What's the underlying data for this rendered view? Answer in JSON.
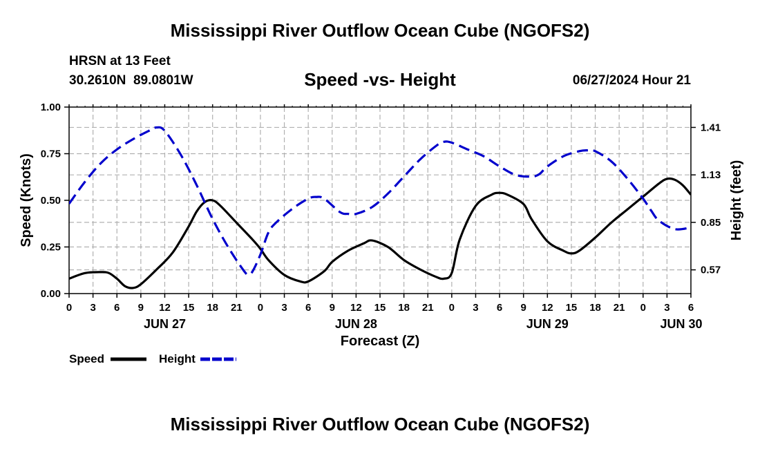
{
  "header": {
    "title": "Mississippi River Outflow Ocean Cube (NGOFS2)",
    "station": "HRSN at 13 Feet",
    "coords": "30.2610N  89.0801W",
    "subtitle": "Speed -vs- Height",
    "datetime": "06/27/2024 Hour 21"
  },
  "footer": {
    "title": "Mississippi River Outflow Ocean Cube (NGOFS2)"
  },
  "colors": {
    "speed": "#000000",
    "height": "#0000cc",
    "grid": "#b0b0b0"
  },
  "chart_data": {
    "type": "line",
    "title": "Speed -vs- Height",
    "xlabel": "Forecast (Z)",
    "ylabel": "Speed (Knots)",
    "y2label": "Height (feet)",
    "x_unit": "hours since Jun 27 00Z",
    "xlim": [
      0,
      78
    ],
    "x_ticks": [
      0,
      3,
      6,
      9,
      12,
      15,
      18,
      21,
      24,
      27,
      30,
      33,
      36,
      39,
      42,
      45,
      48,
      51,
      54,
      57,
      60,
      63,
      66,
      69,
      72,
      75,
      78
    ],
    "x_tick_labels": [
      "0",
      "3",
      "6",
      "9",
      "12",
      "15",
      "18",
      "21",
      "0",
      "3",
      "6",
      "9",
      "12",
      "15",
      "18",
      "21",
      "0",
      "3",
      "6",
      "9",
      "12",
      "15",
      "18",
      "21",
      "0",
      "3",
      "6"
    ],
    "date_labels": [
      {
        "x": 12,
        "label": "JUN 27"
      },
      {
        "x": 36,
        "label": "JUN 28"
      },
      {
        "x": 60,
        "label": "JUN 29"
      },
      {
        "x": 78,
        "label": "JUN 30"
      }
    ],
    "ylim": [
      0,
      1.0
    ],
    "y_ticks": [
      0,
      0.25,
      0.5,
      0.75,
      1.0
    ],
    "y_tick_labels": [
      "0.00",
      "0.25",
      "0.50",
      "0.75",
      "1.00"
    ],
    "y2lim": [
      0.43,
      1.53
    ],
    "y2_ticks": [
      0.57,
      0.85,
      1.13,
      1.41
    ],
    "y2_tick_labels": [
      "0.57",
      "0.85",
      "1.13",
      "1.41"
    ],
    "grid": true,
    "series": [
      {
        "name": "Speed",
        "axis": "left",
        "style": "solid",
        "x": [
          0,
          2,
          4,
          5,
          6,
          7,
          8,
          9,
          11,
          13,
          15,
          16,
          17,
          18,
          19,
          21,
          23,
          24,
          25,
          27,
          29,
          30,
          32,
          33,
          35,
          37,
          38,
          40,
          42,
          44,
          46,
          47,
          48,
          49,
          51,
          53,
          54,
          55,
          57,
          58,
          60,
          62,
          63,
          64,
          66,
          68,
          70,
          72,
          74,
          75,
          76,
          77,
          78
        ],
        "values": [
          0.08,
          0.11,
          0.115,
          0.11,
          0.08,
          0.04,
          0.03,
          0.05,
          0.13,
          0.22,
          0.36,
          0.44,
          0.49,
          0.5,
          0.47,
          0.38,
          0.29,
          0.24,
          0.18,
          0.1,
          0.065,
          0.065,
          0.12,
          0.17,
          0.23,
          0.27,
          0.285,
          0.25,
          0.18,
          0.13,
          0.09,
          0.08,
          0.11,
          0.29,
          0.47,
          0.53,
          0.54,
          0.53,
          0.48,
          0.4,
          0.28,
          0.23,
          0.215,
          0.23,
          0.3,
          0.38,
          0.45,
          0.52,
          0.59,
          0.615,
          0.61,
          0.58,
          0.53
        ]
      },
      {
        "name": "Height",
        "axis": "right",
        "style": "dashed",
        "x": [
          0,
          2,
          4,
          6,
          8,
          10,
          11,
          12,
          14,
          16,
          18,
          20,
          22,
          22.5,
          23,
          24,
          25,
          26,
          28,
          30,
          31,
          32,
          34,
          35,
          36,
          38,
          40,
          42,
          44,
          46,
          47,
          48,
          50,
          52,
          54,
          56,
          58,
          59,
          60,
          62,
          64,
          65,
          66,
          68,
          70,
          72,
          73,
          74,
          76,
          78
        ],
        "values": [
          0.96,
          1.09,
          1.2,
          1.28,
          1.34,
          1.39,
          1.41,
          1.39,
          1.25,
          1.07,
          0.87,
          0.7,
          0.56,
          0.545,
          0.56,
          0.66,
          0.79,
          0.85,
          0.93,
          0.99,
          1.0,
          0.99,
          0.91,
          0.9,
          0.9,
          0.94,
          1.02,
          1.12,
          1.22,
          1.3,
          1.325,
          1.32,
          1.28,
          1.24,
          1.18,
          1.13,
          1.12,
          1.135,
          1.18,
          1.24,
          1.27,
          1.275,
          1.27,
          1.21,
          1.11,
          0.99,
          0.92,
          0.86,
          0.81,
          0.82
        ]
      }
    ],
    "legend": [
      {
        "label": "Speed",
        "style": "solid"
      },
      {
        "label": "Height",
        "style": "dashed"
      }
    ],
    "legend_position": "bottom-left"
  }
}
